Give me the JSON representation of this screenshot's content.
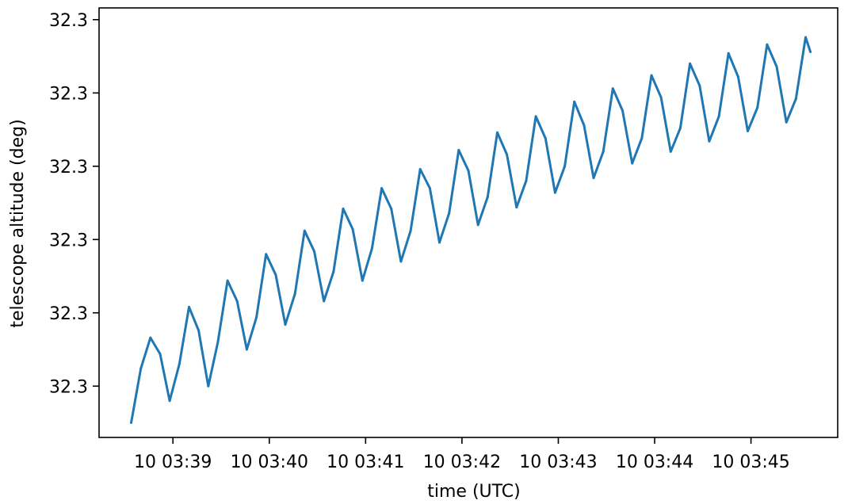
{
  "chart_data": {
    "type": "line",
    "title": "",
    "xlabel": "time (UTC)",
    "ylabel": "telescope altitude (deg)",
    "x_ticks": [
      {
        "t": "10 03:39",
        "label": "10 03:39"
      },
      {
        "t": "10 03:40",
        "label": "10 03:40"
      },
      {
        "t": "10 03:41",
        "label": "10 03:41"
      },
      {
        "t": "10 03:42",
        "label": "10 03:42"
      },
      {
        "t": "10 03:43",
        "label": "10 03:43"
      },
      {
        "t": "10 03:44",
        "label": "10 03:44"
      },
      {
        "t": "10 03:45",
        "label": "10 03:45"
      }
    ],
    "y_ticks": [
      {
        "value": 32.3297,
        "label": "32.3"
      },
      {
        "value": 32.32975,
        "label": "32.3"
      },
      {
        "value": 32.3298,
        "label": "32.3"
      },
      {
        "value": 32.32985,
        "label": "32.3"
      },
      {
        "value": 32.3299,
        "label": "32.3"
      },
      {
        "value": 32.32995,
        "label": "32.3"
      }
    ],
    "xlim": [
      "10 03:38:14",
      "10 03:45:54"
    ],
    "ylim": [
      32.329665,
      32.329958
    ],
    "grid": false,
    "colors": {
      "line": "#1f77b4",
      "axes": "#000000"
    },
    "series": [
      {
        "x": [
          "10 03:38:34",
          "10 03:38:40",
          "10 03:38:46",
          "10 03:38:52",
          "10 03:38:58",
          "10 03:39:04",
          "10 03:39:10",
          "10 03:39:16",
          "10 03:39:22",
          "10 03:39:28",
          "10 03:39:34",
          "10 03:39:40",
          "10 03:39:46",
          "10 03:39:52",
          "10 03:39:58",
          "10 03:40:04",
          "10 03:40:10",
          "10 03:40:16",
          "10 03:40:22",
          "10 03:40:28",
          "10 03:40:34",
          "10 03:40:40",
          "10 03:40:46",
          "10 03:40:52",
          "10 03:40:58",
          "10 03:41:04",
          "10 03:41:10",
          "10 03:41:16",
          "10 03:41:22",
          "10 03:41:28",
          "10 03:41:34",
          "10 03:41:40",
          "10 03:41:46",
          "10 03:41:52",
          "10 03:41:58",
          "10 03:42:04",
          "10 03:42:10",
          "10 03:42:16",
          "10 03:42:22",
          "10 03:42:28",
          "10 03:42:34",
          "10 03:42:40",
          "10 03:42:46",
          "10 03:42:52",
          "10 03:42:58",
          "10 03:43:04",
          "10 03:43:10",
          "10 03:43:16",
          "10 03:43:22",
          "10 03:43:28",
          "10 03:43:34",
          "10 03:43:40",
          "10 03:43:46",
          "10 03:43:52",
          "10 03:43:58",
          "10 03:44:04",
          "10 03:44:10",
          "10 03:44:16",
          "10 03:44:22",
          "10 03:44:28",
          "10 03:44:34",
          "10 03:44:40",
          "10 03:44:46",
          "10 03:44:52",
          "10 03:44:58",
          "10 03:45:04",
          "10 03:45:10",
          "10 03:45:16",
          "10 03:45:22",
          "10 03:45:28",
          "10 03:45:34",
          "10 03:45:37"
        ],
        "y": [
          32.329675,
          32.329712,
          32.329733,
          32.329722,
          32.32969,
          32.329715,
          32.329754,
          32.329738,
          32.3297,
          32.32973,
          32.329772,
          32.329758,
          32.329725,
          32.329747,
          32.32979,
          32.329776,
          32.329742,
          32.329763,
          32.329806,
          32.329792,
          32.329758,
          32.329778,
          32.329821,
          32.329807,
          32.329772,
          32.329794,
          32.329835,
          32.329821,
          32.329785,
          32.329806,
          32.329848,
          32.329835,
          32.329798,
          32.329818,
          32.329861,
          32.329847,
          32.32981,
          32.329829,
          32.329873,
          32.329858,
          32.329822,
          32.32984,
          32.329884,
          32.329869,
          32.329832,
          32.32985,
          32.329894,
          32.329878,
          32.329842,
          32.32986,
          32.329903,
          32.329888,
          32.329852,
          32.329869,
          32.329912,
          32.329897,
          32.32986,
          32.329876,
          32.32992,
          32.329905,
          32.329867,
          32.329884,
          32.329927,
          32.329911,
          32.329874,
          32.32989,
          32.329933,
          32.329918,
          32.32988,
          32.329896,
          32.329938,
          32.329928
        ]
      }
    ]
  }
}
